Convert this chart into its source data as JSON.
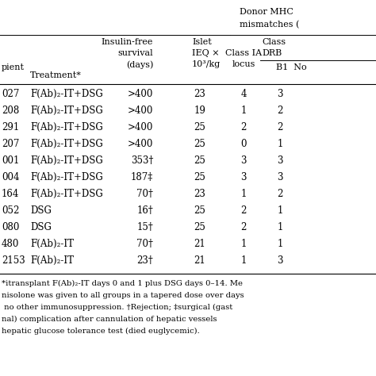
{
  "recipients": [
    "027",
    "208",
    "291",
    "207",
    "001",
    "004",
    "164",
    "052",
    "080",
    "480",
    "2153"
  ],
  "treatments": [
    "F(Ab)₂-IT+DSG",
    "F(Ab)₂-IT+DSG",
    "F(Ab)₂-IT+DSG",
    "F(Ab)₂-IT+DSG",
    "F(Ab)₂-IT+DSG",
    "F(Ab)₂-IT+DSG",
    "F(Ab)₂-IT+DSG",
    "DSG",
    "DSG",
    "F(Ab)₂-IT",
    "F(Ab)₂-IT"
  ],
  "survival": [
    ">400",
    ">400",
    ">400",
    ">400",
    "353†",
    "187‡",
    "70†",
    "16†",
    "15†",
    "70†",
    "23†"
  ],
  "islet": [
    "23",
    "19",
    "25",
    "25",
    "25",
    "25",
    "23",
    "25",
    "25",
    "21",
    "21"
  ],
  "class_ia": [
    "4",
    "1",
    "2",
    "0",
    "3",
    "3",
    "1",
    "2",
    "2",
    "1",
    "1"
  ],
  "drb_b1": [
    "3",
    "2",
    "2",
    "1",
    "3",
    "3",
    "2",
    "1",
    "1",
    "1",
    "3"
  ],
  "footnote_lines": [
    "*itransplant F(Ab)₂-IT days 0 and 1 plus DSG days 0–14. Me",
    "nisolone was given to all groups in a tapered dose over days",
    " no other immunosuppression. †Rejection; ‡surgical (gast",
    "nal) complication after cannulation of hepatic vessels",
    "hepatic glucose tolerance test (died euglycemic)."
  ],
  "bg_color": "#ffffff",
  "text_color": "#000000",
  "line_color": "#000000"
}
